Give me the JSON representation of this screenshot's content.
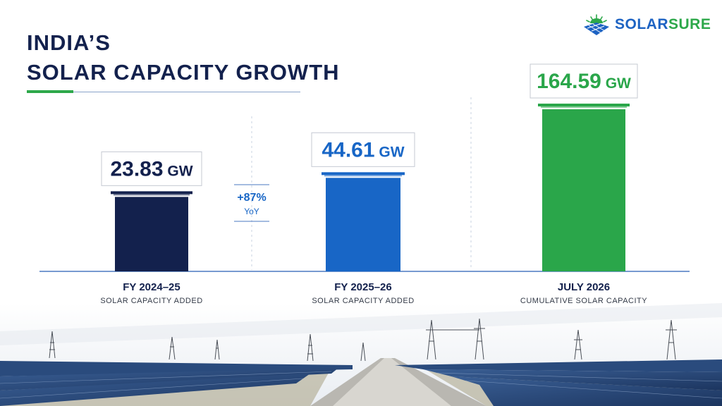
{
  "header": {
    "title_line1": "INDIA’S",
    "title_line2": "SOLAR CAPACITY GROWTH"
  },
  "brand": {
    "name_part1": "SOLAR",
    "name_part2": "SURE"
  },
  "colors": {
    "navy": "#13214d",
    "blue": "#1866c6",
    "green": "#2aa64a",
    "axis": "#4a78c0"
  },
  "chart_data": {
    "type": "bar",
    "categories": [
      "FY 2024–25",
      "FY 2025–26",
      "JULY 2026"
    ],
    "subtitles": [
      "SOLAR CAPACITY ADDED",
      "SOLAR CAPACITY ADDED",
      "CUMULATIVE SOLAR CAPACITY"
    ],
    "values": [
      23.83,
      44.61,
      164.59
    ],
    "value_labels": [
      "23.83",
      "44.61",
      "164.59"
    ],
    "unit": "GW",
    "bar_colors": [
      "#13214d",
      "#1866c6",
      "#2aa64a"
    ],
    "label_colors": [
      "#13214d",
      "#1866c6",
      "#2aa64a"
    ],
    "growth": {
      "value": "+87%",
      "label": "YoY"
    },
    "scale": "broken / not to scale"
  }
}
